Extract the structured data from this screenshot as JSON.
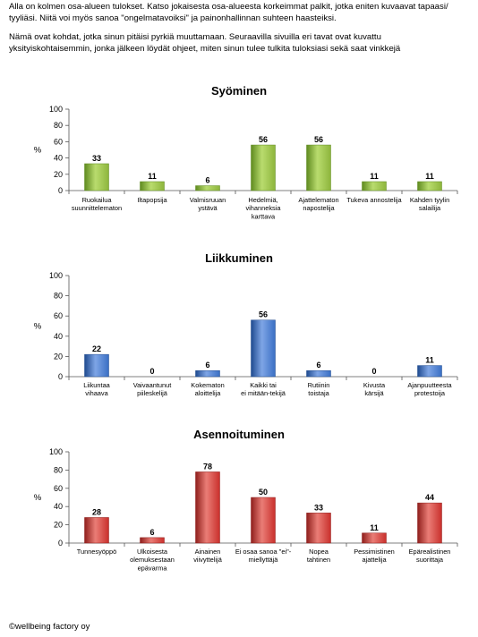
{
  "intro": {
    "line1": "Alla on kolmen osa-alueen tulokset. Katso jokaisesta osa-alueesta korkeimmat palkit, jotka eniten kuvaavat tapaasi/",
    "line2": "tyyliäsi. Niitä voi myös sanoa \"ongelmatavoiksi\" ja painonhallinnan suhteen haasteiksi.",
    "line3": "Nämä ovat kohdat, jotka sinun pitäisi pyrkiä muuttamaan. Seuraavilla sivuilla eri tavat ovat kuvattu",
    "line4": "yksityiskohtaisemmin, jonka jälkeen löydät ohjeet, miten sinun tulee tulkita tuloksiasi sekä saat vinkkejä"
  },
  "footer": {
    "copyright": "©wellbeing factory oy"
  },
  "chart_data": [
    {
      "type": "bar",
      "title": "Syöminen",
      "ylabel": "%",
      "ylim": [
        0,
        100
      ],
      "yticks": [
        "0",
        "20",
        "40",
        "60",
        "80",
        "100"
      ],
      "grid": false,
      "categories": [
        [
          "Ruokailua",
          "suunnittelematon"
        ],
        [
          "Iltapopsija"
        ],
        [
          "Valmisruuan",
          "ystävä"
        ],
        [
          "Hedelmiä,",
          "vihanneksia",
          "karttava"
        ],
        [
          "Ajattelematon",
          "napostelija"
        ],
        [
          "Tukeva annostelija"
        ],
        [
          "Kahden tyylin",
          "salailija"
        ]
      ],
      "values": [
        33,
        11,
        6,
        56,
        56,
        11,
        11
      ],
      "color": "#8db53c",
      "colorLight": "#b9dc6e",
      "colorDark": "#5f8a1f"
    },
    {
      "type": "bar",
      "title": "Liikkuminen",
      "ylabel": "%",
      "ylim": [
        0,
        100
      ],
      "yticks": [
        "0",
        "20",
        "40",
        "60",
        "80",
        "100"
      ],
      "grid": false,
      "categories": [
        [
          "Liikuntaa",
          "vihaava"
        ],
        [
          "Vaivaantunut",
          "piileskelijä"
        ],
        [
          "Kokematon",
          "aloittelija"
        ],
        [
          "Kaikki tai",
          "ei mitään-tekijä"
        ],
        [
          "Rutiinin",
          "toistaja"
        ],
        [
          "Kivusta",
          "kärsijä"
        ],
        [
          "Ajanpuutteesta",
          "protestoija"
        ]
      ],
      "values": [
        22,
        0,
        6,
        56,
        6,
        0,
        11
      ],
      "color": "#3a6fc4",
      "colorLight": "#7ea5e6",
      "colorDark": "#1f4a8f"
    },
    {
      "type": "bar",
      "title": "Asennoituminen",
      "ylabel": "%",
      "ylim": [
        0,
        100
      ],
      "yticks": [
        "0",
        "20",
        "40",
        "60",
        "80",
        "100"
      ],
      "grid": false,
      "categories": [
        [
          "Tunnesyöppö"
        ],
        [
          "Ulkoisesta",
          "olemuksestaan",
          "epävarma"
        ],
        [
          "Ainainen",
          "viivyttelijä"
        ],
        [
          "Ei osaa sanoa \"ei\"-",
          "miellyttäjä"
        ],
        [
          "Nopea",
          "tahtinen"
        ],
        [
          "Pessimistinen",
          "ajattelija"
        ],
        [
          "Epärealistinen",
          "suorittaja"
        ]
      ],
      "values": [
        28,
        6,
        78,
        50,
        33,
        11,
        44
      ],
      "color": "#c9302c",
      "colorLight": "#ea7d76",
      "colorDark": "#8f1f1c"
    }
  ]
}
